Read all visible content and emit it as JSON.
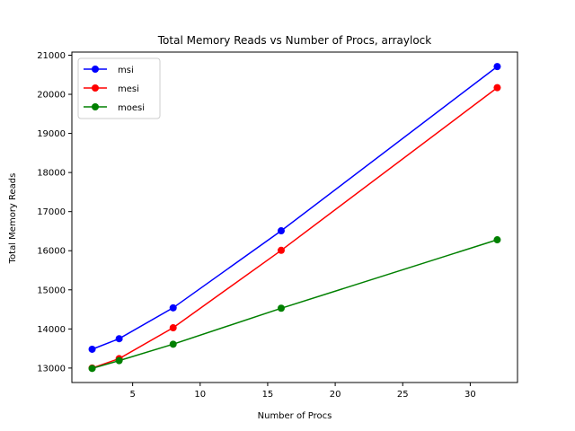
{
  "chart_data": {
    "type": "line",
    "title": "Total Memory Reads vs Number of Procs, arraylock",
    "xlabel": "Number of Procs",
    "ylabel": "Total Memory Reads",
    "xlim": [
      0.5,
      33.5
    ],
    "ylim": [
      12630,
      21080
    ],
    "xticks": [
      5,
      10,
      15,
      20,
      25,
      30
    ],
    "yticks": [
      13000,
      14000,
      15000,
      16000,
      17000,
      18000,
      19000,
      20000,
      21000
    ],
    "grid": false,
    "legend": "top-left",
    "x": [
      2,
      4,
      8,
      16,
      32
    ],
    "series": [
      {
        "name": "msi",
        "color": "#0000ff",
        "values": [
          13480,
          13750,
          14540,
          16510,
          20710
        ]
      },
      {
        "name": "mesi",
        "color": "#ff0000",
        "values": [
          13000,
          13240,
          14030,
          16010,
          20170
        ]
      },
      {
        "name": "moesi",
        "color": "#008000",
        "values": [
          12990,
          13190,
          13610,
          14530,
          16280
        ]
      }
    ]
  }
}
